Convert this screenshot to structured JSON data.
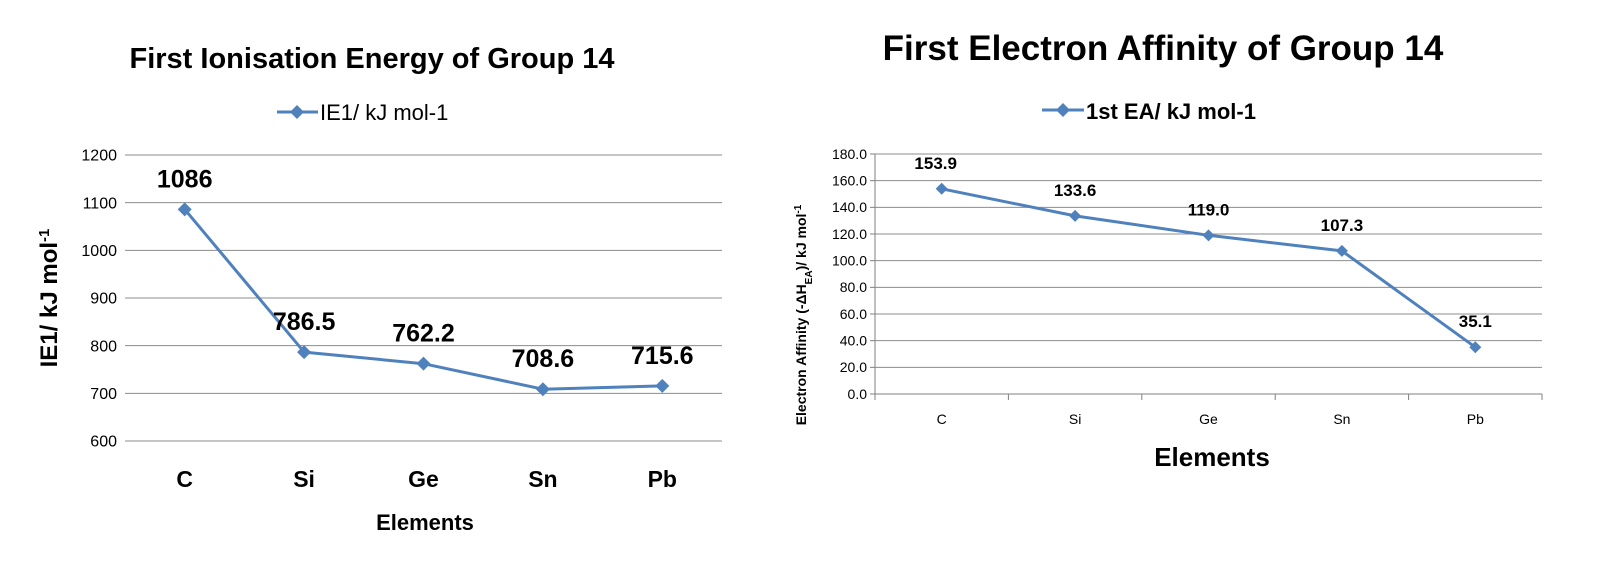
{
  "chart_data": [
    {
      "type": "line",
      "title": "First Ionisation Energy of Group 14",
      "categories": [
        "C",
        "Si",
        "Ge",
        "Sn",
        "Pb"
      ],
      "series": [
        {
          "name": "IE1/ kJ mol-1",
          "values": [
            1086,
            786.5,
            762.2,
            708.6,
            715.6
          ],
          "labels": [
            "1086",
            "786.5",
            "762.2",
            "708.6",
            "715.6"
          ]
        }
      ],
      "xlabel": "Elements",
      "ylabel": {
        "main": "IE1/ kJ mol",
        "sup": "-1"
      },
      "ylim": [
        600,
        1200
      ],
      "yticks": [
        "600",
        "700",
        "800",
        "900",
        "1000",
        "1100",
        "1200"
      ],
      "grid": true,
      "legend": "top-center",
      "color": "#4F81BD"
    },
    {
      "type": "line",
      "title": "First Electron Affinity of Group 14",
      "categories": [
        "C",
        "Si",
        "Ge",
        "Sn",
        "Pb"
      ],
      "series": [
        {
          "name": "1st EA/ kJ mol-1",
          "values": [
            153.9,
            133.6,
            119.0,
            107.3,
            35.1
          ],
          "labels": [
            "153.9",
            "133.6",
            "119.0",
            "107.3",
            "35.1"
          ]
        }
      ],
      "xlabel": "Elements",
      "ylabel": {
        "p1": "Electron Affinity (-ΔH",
        "sub": "EA",
        "p2": ")/ kJ mol",
        "sup": "-1"
      },
      "ylim": [
        0,
        180
      ],
      "yticks": [
        "0.0",
        "20.0",
        "40.0",
        "60.0",
        "80.0",
        "100.0",
        "120.0",
        "140.0",
        "160.0",
        "180.0"
      ],
      "grid": true,
      "legend": "top-center",
      "color": "#4F81BD"
    }
  ]
}
